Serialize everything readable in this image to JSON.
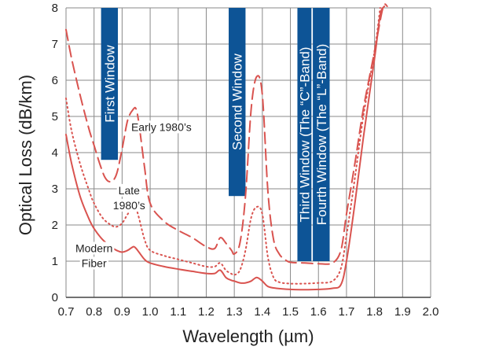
{
  "chart_data": {
    "type": "line",
    "title": "",
    "xlabel": "Wavelength (µm)",
    "ylabel": "Optical Loss (dB/km)",
    "xlim": [
      0.7,
      2.0
    ],
    "ylim": [
      0,
      8
    ],
    "xticks": [
      "0.7",
      "0.8",
      "0.9",
      "1.0",
      "1.1",
      "1.2",
      "1.3",
      "1.4",
      "1.5",
      "1.6",
      "1.7",
      "1.8",
      "1.9",
      "2.0"
    ],
    "yticks": [
      "0",
      "1",
      "2",
      "3",
      "4",
      "5",
      "6",
      "7",
      "8"
    ],
    "grid": true,
    "line_color": "#d9534f",
    "band_color": "#0d5496",
    "series": [
      {
        "name": "Early 1980's",
        "style": "dashed",
        "x": [
          0.7,
          0.72,
          0.75,
          0.78,
          0.8,
          0.82,
          0.84,
          0.86,
          0.88,
          0.9,
          0.92,
          0.94,
          0.95,
          0.96,
          0.98,
          1.0,
          1.05,
          1.1,
          1.15,
          1.2,
          1.23,
          1.25,
          1.27,
          1.29,
          1.3,
          1.32,
          1.34,
          1.36,
          1.38,
          1.4,
          1.42,
          1.44,
          1.46,
          1.48,
          1.5,
          1.55,
          1.6,
          1.65,
          1.68,
          1.7,
          1.73,
          1.76,
          1.8,
          1.83,
          1.845
        ],
        "values": [
          7.4,
          6.6,
          5.6,
          4.7,
          4.2,
          3.7,
          3.3,
          3.2,
          3.4,
          4.1,
          4.9,
          5.2,
          5.2,
          4.8,
          3.6,
          2.6,
          2.1,
          1.85,
          1.65,
          1.4,
          1.35,
          1.65,
          1.5,
          1.3,
          1.2,
          1.5,
          2.8,
          5.2,
          6.1,
          5.6,
          2.9,
          1.6,
          1.2,
          1.05,
          0.97,
          0.95,
          0.93,
          0.95,
          1.3,
          2.3,
          3.7,
          5.2,
          6.8,
          8.0,
          8.2
        ]
      },
      {
        "name": "Late 1980's",
        "style": "dotted",
        "x": [
          0.7,
          0.72,
          0.75,
          0.78,
          0.8,
          0.83,
          0.86,
          0.88,
          0.9,
          0.92,
          0.94,
          0.95,
          0.96,
          0.98,
          1.0,
          1.05,
          1.1,
          1.15,
          1.2,
          1.23,
          1.25,
          1.27,
          1.29,
          1.3,
          1.32,
          1.34,
          1.36,
          1.38,
          1.4,
          1.42,
          1.44,
          1.46,
          1.5,
          1.55,
          1.6,
          1.65,
          1.68,
          1.7,
          1.73,
          1.76,
          1.8,
          1.82
        ],
        "values": [
          5.5,
          4.6,
          3.7,
          3.0,
          2.6,
          2.2,
          2.0,
          1.95,
          2.05,
          2.3,
          2.5,
          2.45,
          2.2,
          1.6,
          1.3,
          1.15,
          1.05,
          0.95,
          0.85,
          0.85,
          0.95,
          0.75,
          0.65,
          0.62,
          0.75,
          1.3,
          2.2,
          2.5,
          2.3,
          1.1,
          0.55,
          0.42,
          0.38,
          0.38,
          0.4,
          0.45,
          0.8,
          1.7,
          3.3,
          5.0,
          6.8,
          8.0
        ]
      },
      {
        "name": "Modern Fiber",
        "style": "solid",
        "x": [
          0.7,
          0.72,
          0.75,
          0.78,
          0.8,
          0.83,
          0.86,
          0.88,
          0.9,
          0.92,
          0.94,
          0.95,
          0.96,
          0.98,
          1.0,
          1.05,
          1.1,
          1.15,
          1.2,
          1.23,
          1.25,
          1.27,
          1.29,
          1.3,
          1.32,
          1.34,
          1.36,
          1.38,
          1.4,
          1.42,
          1.45,
          1.5,
          1.55,
          1.6,
          1.65,
          1.68,
          1.7,
          1.73,
          1.76,
          1.8,
          1.82,
          1.835
        ],
        "values": [
          4.5,
          3.7,
          2.8,
          2.2,
          1.9,
          1.6,
          1.4,
          1.3,
          1.25,
          1.3,
          1.4,
          1.35,
          1.25,
          1.05,
          0.95,
          0.85,
          0.78,
          0.72,
          0.66,
          0.66,
          0.75,
          0.55,
          0.47,
          0.45,
          0.4,
          0.4,
          0.45,
          0.55,
          0.45,
          0.3,
          0.25,
          0.22,
          0.21,
          0.22,
          0.25,
          0.35,
          1.0,
          2.6,
          4.4,
          6.6,
          7.8,
          8.2
        ]
      }
    ],
    "bands": [
      {
        "label": "First Window",
        "x_start": 0.825,
        "x_end": 0.885,
        "y_bottom": 3.8,
        "y_top": 8.0
      },
      {
        "label": "Second Window",
        "x_start": 1.28,
        "x_end": 1.34,
        "y_bottom": 2.8,
        "y_top": 8.0
      },
      {
        "label": "Third Window (The “C”-Band)",
        "x_start": 1.525,
        "x_end": 1.575,
        "y_bottom": 1.0,
        "y_top": 8.0
      },
      {
        "label": "Fourth Window (The “L”-Band)",
        "x_start": 1.58,
        "x_end": 1.64,
        "y_bottom": 1.0,
        "y_top": 8.0
      }
    ],
    "annotations": [
      {
        "lines": [
          "Early 1980’s"
        ],
        "x": 1.04,
        "y": 4.6
      },
      {
        "lines": [
          "Late",
          "1980’s"
        ],
        "x": 0.925,
        "y": 2.85
      },
      {
        "lines": [
          "Modern",
          "Fiber"
        ],
        "x": 0.8,
        "y": 1.25
      }
    ]
  }
}
